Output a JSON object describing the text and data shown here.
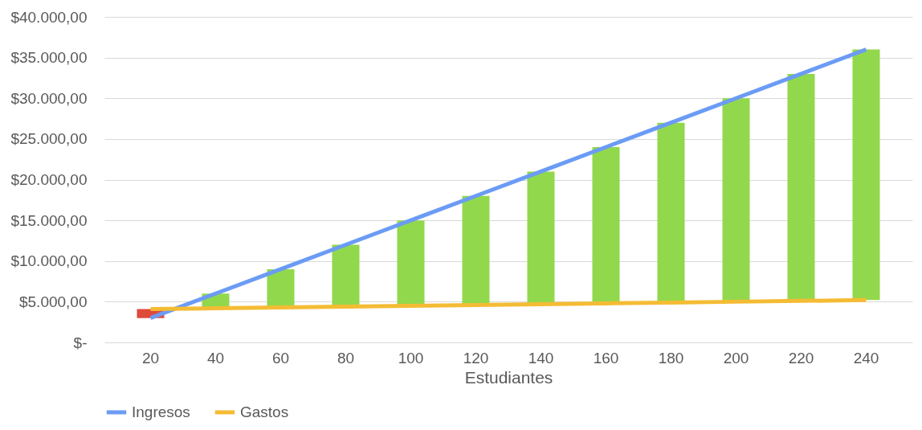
{
  "chart_data": {
    "type": "line",
    "xlabel": "Estudiantes",
    "categories": [
      "20",
      "40",
      "60",
      "80",
      "100",
      "120",
      "140",
      "160",
      "180",
      "200",
      "220",
      "240"
    ],
    "series": [
      {
        "type": "bar",
        "colors": [
          "#e04a3a",
          "#92d84c",
          "#92d84c",
          "#92d84c",
          "#92d84c",
          "#92d84c",
          "#92d84c",
          "#92d84c",
          "#92d84c",
          "#92d84c",
          "#92d84c",
          "#92d84c"
        ],
        "base": [
          3000,
          4200,
          4300,
          4400,
          4500,
          4600,
          4700,
          4800,
          4900,
          5000,
          5100,
          5200
        ],
        "values": [
          1100,
          1800,
          4700,
          7600,
          10500,
          13400,
          16300,
          19200,
          22100,
          25000,
          27900,
          30800
        ]
      },
      {
        "name": "Ingresos",
        "color": "#6b9bf5",
        "values": [
          3000,
          6000,
          9000,
          12000,
          15000,
          18000,
          21000,
          24000,
          27000,
          30000,
          33000,
          36000
        ]
      },
      {
        "name": "Gastos",
        "color": "#f4bc34",
        "values": [
          4100,
          4200,
          4300,
          4400,
          4500,
          4600,
          4700,
          4800,
          4900,
          5000,
          5100,
          5200
        ]
      }
    ],
    "ylim": [
      0,
      40000
    ],
    "yticks": [
      {
        "value": 0,
        "label": "$-"
      },
      {
        "value": 5000,
        "label": "$5.000,00"
      },
      {
        "value": 10000,
        "label": "$10.000,00"
      },
      {
        "value": 15000,
        "label": "$15.000,00"
      },
      {
        "value": 20000,
        "label": "$20.000,00"
      },
      {
        "value": 25000,
        "label": "$25.000,00"
      },
      {
        "value": 30000,
        "label": "$30.000,00"
      },
      {
        "value": 35000,
        "label": "$35.000,00"
      },
      {
        "value": 40000,
        "label": "$40.000,00"
      }
    ],
    "grid": "y",
    "legend": "bottom"
  }
}
